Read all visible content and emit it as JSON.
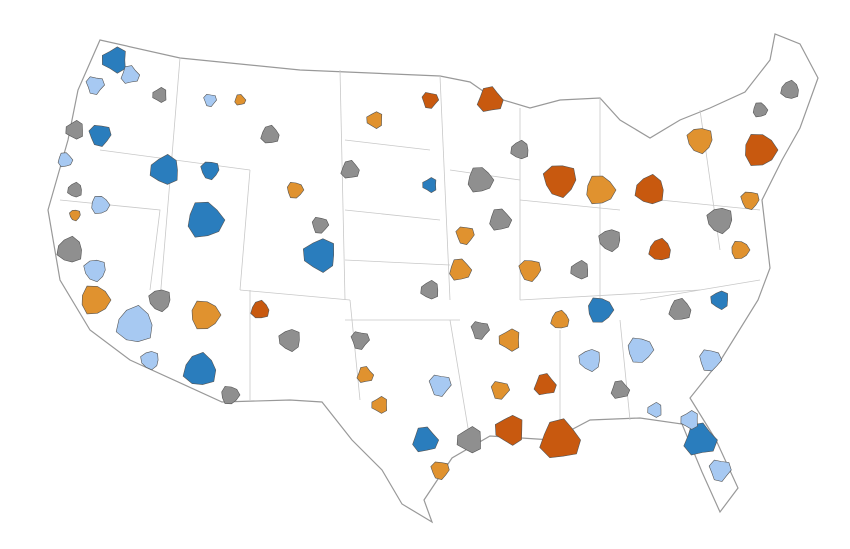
{
  "map": {
    "colors": [
      "#2a7dbd",
      "#a7c9f2",
      "#8f8f8f",
      "#e0922f",
      "#c8590f"
    ],
    "outline": "#999999",
    "land": "#ffffff"
  }
}
